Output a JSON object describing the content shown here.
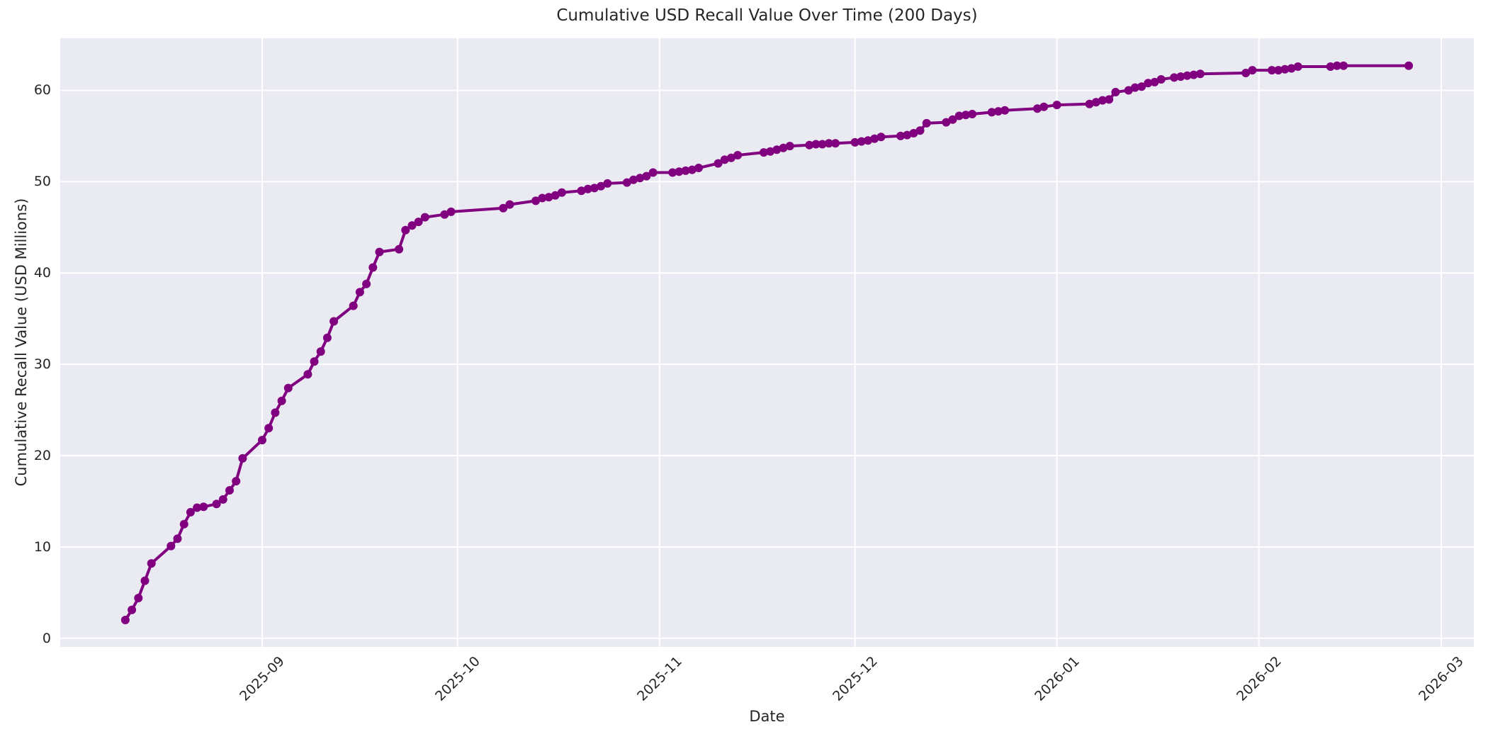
{
  "chart_data": {
    "type": "line",
    "title": "Cumulative USD Recall Value Over Time (200 Days)",
    "xlabel": "Date",
    "ylabel": "Cumulative Recall Value (USD Millions)",
    "legend": "none",
    "grid": true,
    "colors": {
      "line": "#800080",
      "marker": "#800080",
      "axes_background": "#eaeaf2",
      "grid_line": "#ffffff",
      "figure_background": "#ffffff",
      "text": "#262626"
    },
    "x_ticks": [
      {
        "date": "2025-09-01",
        "label": "2025-09"
      },
      {
        "date": "2025-10-01",
        "label": "2025-10"
      },
      {
        "date": "2025-11-01",
        "label": "2025-11"
      },
      {
        "date": "2025-12-01",
        "label": "2025-12"
      },
      {
        "date": "2026-01-01",
        "label": "2026-01"
      },
      {
        "date": "2026-02-01",
        "label": "2026-02"
      },
      {
        "date": "2026-03-01",
        "label": "2026-03"
      }
    ],
    "y_ticks": [
      {
        "value": 0,
        "label": "0"
      },
      {
        "value": 10,
        "label": "10"
      },
      {
        "value": 20,
        "label": "20"
      },
      {
        "value": 30,
        "label": "30"
      },
      {
        "value": 40,
        "label": "40"
      },
      {
        "value": 50,
        "label": "50"
      },
      {
        "value": 60,
        "label": "60"
      }
    ],
    "x_range": [
      "2025-08-01",
      "2026-03-06"
    ],
    "y_range": [
      -0.95,
      65.7
    ],
    "series": [
      {
        "name": "Cumulative USD Recall Value",
        "points": [
          [
            "2025-08-11",
            2.0
          ],
          [
            "2025-08-12",
            3.1
          ],
          [
            "2025-08-13",
            4.4
          ],
          [
            "2025-08-14",
            6.3
          ],
          [
            "2025-08-15",
            8.2
          ],
          [
            "2025-08-18",
            10.1
          ],
          [
            "2025-08-19",
            10.9
          ],
          [
            "2025-08-20",
            12.5
          ],
          [
            "2025-08-21",
            13.8
          ],
          [
            "2025-08-22",
            14.3
          ],
          [
            "2025-08-23",
            14.4
          ],
          [
            "2025-08-25",
            14.7
          ],
          [
            "2025-08-26",
            15.2
          ],
          [
            "2025-08-27",
            16.2
          ],
          [
            "2025-08-28",
            17.2
          ],
          [
            "2025-08-29",
            19.7
          ],
          [
            "2025-09-01",
            21.7
          ],
          [
            "2025-09-02",
            23.0
          ],
          [
            "2025-09-03",
            24.7
          ],
          [
            "2025-09-04",
            26.0
          ],
          [
            "2025-09-05",
            27.4
          ],
          [
            "2025-09-08",
            28.9
          ],
          [
            "2025-09-09",
            30.3
          ],
          [
            "2025-09-10",
            31.4
          ],
          [
            "2025-09-11",
            32.9
          ],
          [
            "2025-09-12",
            34.7
          ],
          [
            "2025-09-15",
            36.4
          ],
          [
            "2025-09-16",
            37.9
          ],
          [
            "2025-09-17",
            38.8
          ],
          [
            "2025-09-18",
            40.6
          ],
          [
            "2025-09-19",
            42.3
          ],
          [
            "2025-09-22",
            42.6
          ],
          [
            "2025-09-23",
            44.7
          ],
          [
            "2025-09-24",
            45.2
          ],
          [
            "2025-09-25",
            45.6
          ],
          [
            "2025-09-26",
            46.1
          ],
          [
            "2025-09-29",
            46.4
          ],
          [
            "2025-09-30",
            46.7
          ],
          [
            "2025-10-08",
            47.1
          ],
          [
            "2025-10-09",
            47.5
          ],
          [
            "2025-10-13",
            47.9
          ],
          [
            "2025-10-14",
            48.2
          ],
          [
            "2025-10-15",
            48.3
          ],
          [
            "2025-10-16",
            48.5
          ],
          [
            "2025-10-17",
            48.8
          ],
          [
            "2025-10-20",
            49.0
          ],
          [
            "2025-10-21",
            49.2
          ],
          [
            "2025-10-22",
            49.3
          ],
          [
            "2025-10-23",
            49.5
          ],
          [
            "2025-10-24",
            49.8
          ],
          [
            "2025-10-27",
            49.9
          ],
          [
            "2025-10-28",
            50.2
          ],
          [
            "2025-10-29",
            50.4
          ],
          [
            "2025-10-30",
            50.6
          ],
          [
            "2025-10-31",
            51.0
          ],
          [
            "2025-11-03",
            51.0
          ],
          [
            "2025-11-04",
            51.1
          ],
          [
            "2025-11-05",
            51.2
          ],
          [
            "2025-11-06",
            51.3
          ],
          [
            "2025-11-07",
            51.5
          ],
          [
            "2025-11-10",
            52.0
          ],
          [
            "2025-11-11",
            52.4
          ],
          [
            "2025-11-12",
            52.6
          ],
          [
            "2025-11-13",
            52.9
          ],
          [
            "2025-11-17",
            53.2
          ],
          [
            "2025-11-18",
            53.3
          ],
          [
            "2025-11-19",
            53.5
          ],
          [
            "2025-11-20",
            53.7
          ],
          [
            "2025-11-21",
            53.9
          ],
          [
            "2025-11-24",
            54.0
          ],
          [
            "2025-11-25",
            54.1
          ],
          [
            "2025-11-26",
            54.1
          ],
          [
            "2025-11-27",
            54.2
          ],
          [
            "2025-11-28",
            54.2
          ],
          [
            "2025-12-01",
            54.3
          ],
          [
            "2025-12-02",
            54.4
          ],
          [
            "2025-12-03",
            54.5
          ],
          [
            "2025-12-04",
            54.7
          ],
          [
            "2025-12-05",
            54.9
          ],
          [
            "2025-12-08",
            55.0
          ],
          [
            "2025-12-09",
            55.1
          ],
          [
            "2025-12-10",
            55.3
          ],
          [
            "2025-12-11",
            55.6
          ],
          [
            "2025-12-12",
            56.4
          ],
          [
            "2025-12-15",
            56.5
          ],
          [
            "2025-12-16",
            56.8
          ],
          [
            "2025-12-17",
            57.2
          ],
          [
            "2025-12-18",
            57.3
          ],
          [
            "2025-12-19",
            57.4
          ],
          [
            "2025-12-22",
            57.6
          ],
          [
            "2025-12-23",
            57.7
          ],
          [
            "2025-12-24",
            57.8
          ],
          [
            "2025-12-29",
            58.0
          ],
          [
            "2025-12-30",
            58.2
          ],
          [
            "2026-01-01",
            58.4
          ],
          [
            "2026-01-06",
            58.5
          ],
          [
            "2026-01-07",
            58.7
          ],
          [
            "2026-01-08",
            58.9
          ],
          [
            "2026-01-09",
            59.0
          ],
          [
            "2026-01-10",
            59.8
          ],
          [
            "2026-01-12",
            60.0
          ],
          [
            "2026-01-13",
            60.3
          ],
          [
            "2026-01-14",
            60.4
          ],
          [
            "2026-01-15",
            60.8
          ],
          [
            "2026-01-16",
            60.9
          ],
          [
            "2026-01-17",
            61.2
          ],
          [
            "2026-01-19",
            61.4
          ],
          [
            "2026-01-20",
            61.5
          ],
          [
            "2026-01-21",
            61.6
          ],
          [
            "2026-01-22",
            61.7
          ],
          [
            "2026-01-23",
            61.8
          ],
          [
            "2026-01-30",
            61.9
          ],
          [
            "2026-01-31",
            62.2
          ],
          [
            "2026-02-03",
            62.2
          ],
          [
            "2026-02-04",
            62.2
          ],
          [
            "2026-02-05",
            62.3
          ],
          [
            "2026-02-06",
            62.4
          ],
          [
            "2026-02-07",
            62.6
          ],
          [
            "2026-02-12",
            62.6
          ],
          [
            "2026-02-13",
            62.7
          ],
          [
            "2026-02-14",
            62.7
          ],
          [
            "2026-02-24",
            62.7
          ]
        ]
      }
    ]
  }
}
